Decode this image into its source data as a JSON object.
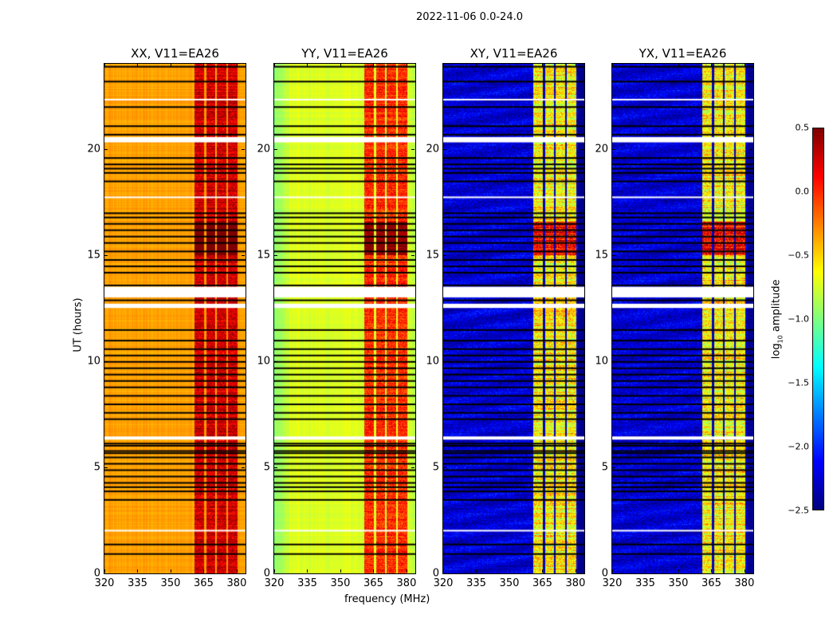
{
  "chart_data": {
    "type": "heatmap",
    "title": "2022-11-06 0.0-24.0",
    "xlabel": "frequency (MHz)",
    "ylabel": "UT (hours)",
    "xlim": [
      320,
      384
    ],
    "ylim": [
      0,
      24
    ],
    "xticks": [
      "320",
      "335",
      "350",
      "365",
      "380"
    ],
    "yticks": [
      "0",
      "5",
      "10",
      "15",
      "20"
    ],
    "panels": [
      {
        "title": "XX, V11=EA26",
        "base_level": -0.35,
        "band_level": 0.05
      },
      {
        "title": "YY, V11=EA26",
        "base_level": -0.72,
        "band_level": -0.2
      },
      {
        "title": "XY, V11=EA26",
        "base_level": -2.25,
        "band_level": -0.85
      },
      {
        "title": "YX, V11=EA26",
        "base_level": -2.25,
        "band_level": -0.85
      }
    ],
    "rfi_bands_mhz": [
      [
        360.6,
        365
      ],
      [
        366,
        370
      ],
      [
        370.8,
        375
      ],
      [
        375.9,
        380.2
      ]
    ],
    "flagged_hours": [
      0.95,
      1.4,
      3.5,
      3.9,
      4.1,
      4.3,
      4.6,
      4.9,
      5.2,
      5.5,
      5.7,
      5.8,
      6.05,
      6.15,
      7.3,
      7.6,
      8.0,
      8.4,
      8.8,
      9.1,
      9.4,
      9.7,
      10.0,
      10.3,
      10.6,
      11.0,
      11.5,
      12.9,
      13.6,
      14.2,
      14.5,
      14.8,
      15.2,
      15.6,
      15.9,
      16.2,
      16.5,
      16.8,
      17.0,
      18.5,
      18.9,
      19.1,
      19.3,
      19.6,
      20.7,
      21.1,
      22.0,
      23.2,
      23.9
    ],
    "gap_hours": [
      [
        2.0,
        2.05
      ],
      [
        6.3,
        6.45
      ],
      [
        12.5,
        12.7
      ],
      [
        13.0,
        13.5
      ],
      [
        17.7,
        17.75
      ],
      [
        20.3,
        20.55
      ],
      [
        22.3,
        22.35
      ]
    ],
    "colorbar": {
      "label_prefix": "log",
      "label_sub": "10",
      "label_suffix": " amplitude",
      "range": [
        -2.5,
        0.5
      ],
      "ticks": [
        "0.5",
        "0.0",
        "−0.5",
        "−1.0",
        "−1.5",
        "−2.0",
        "−2.5"
      ]
    }
  }
}
